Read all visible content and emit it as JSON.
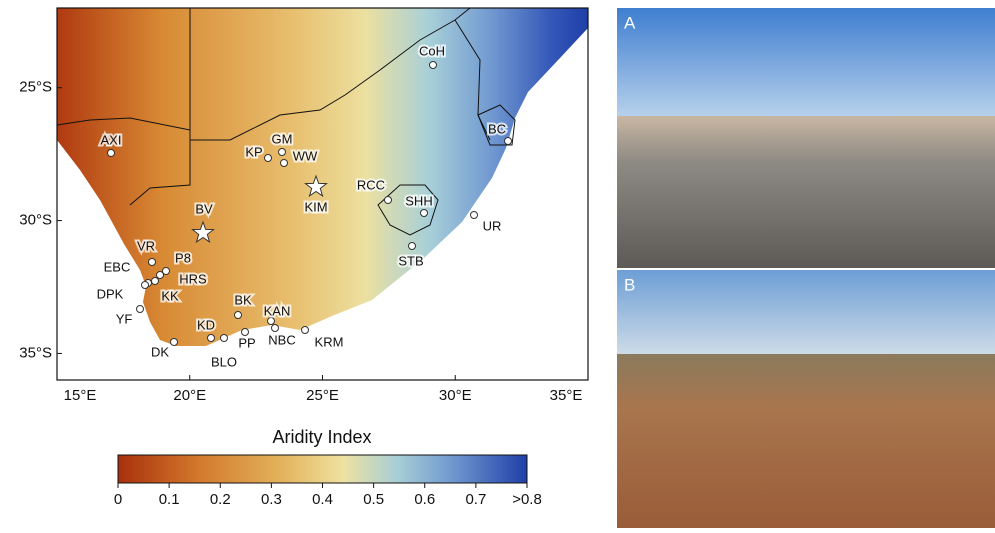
{
  "map": {
    "xlim": [
      15,
      35
    ],
    "ylim": [
      -36,
      -22
    ],
    "xticks": [
      {
        "value": 15,
        "label": "15°E"
      },
      {
        "value": 20,
        "label": "20°E"
      },
      {
        "value": 25,
        "label": "25°E"
      },
      {
        "value": 30,
        "label": "30°E"
      },
      {
        "value": 35,
        "label": "35°E"
      }
    ],
    "yticks": [
      {
        "value": -25,
        "label": "25°S"
      },
      {
        "value": -30,
        "label": "30°S"
      },
      {
        "value": -35,
        "label": "35°S"
      }
    ],
    "sites": [
      "CoH",
      "BC",
      "AXI",
      "GM",
      "KP",
      "WW",
      "KIM",
      "RCC",
      "SHH",
      "UR",
      "BV",
      "STB",
      "VR",
      "P8",
      "EBC",
      "HRS",
      "DPK",
      "KK",
      "BK",
      "YF",
      "KAN",
      "KD",
      "NBC",
      "KRM",
      "PP",
      "DK",
      "BLO"
    ]
  },
  "colorbar": {
    "title": "Aridity Index",
    "lim": [
      0,
      0.8
    ],
    "ticks": [
      0,
      0.1,
      0.2,
      0.3,
      0.4,
      0.5,
      0.6,
      0.7,
      {
        "value": 0.8,
        "label": ">0.8"
      }
    ]
  },
  "photos": [
    {
      "label": "A"
    },
    {
      "label": "B"
    }
  ]
}
